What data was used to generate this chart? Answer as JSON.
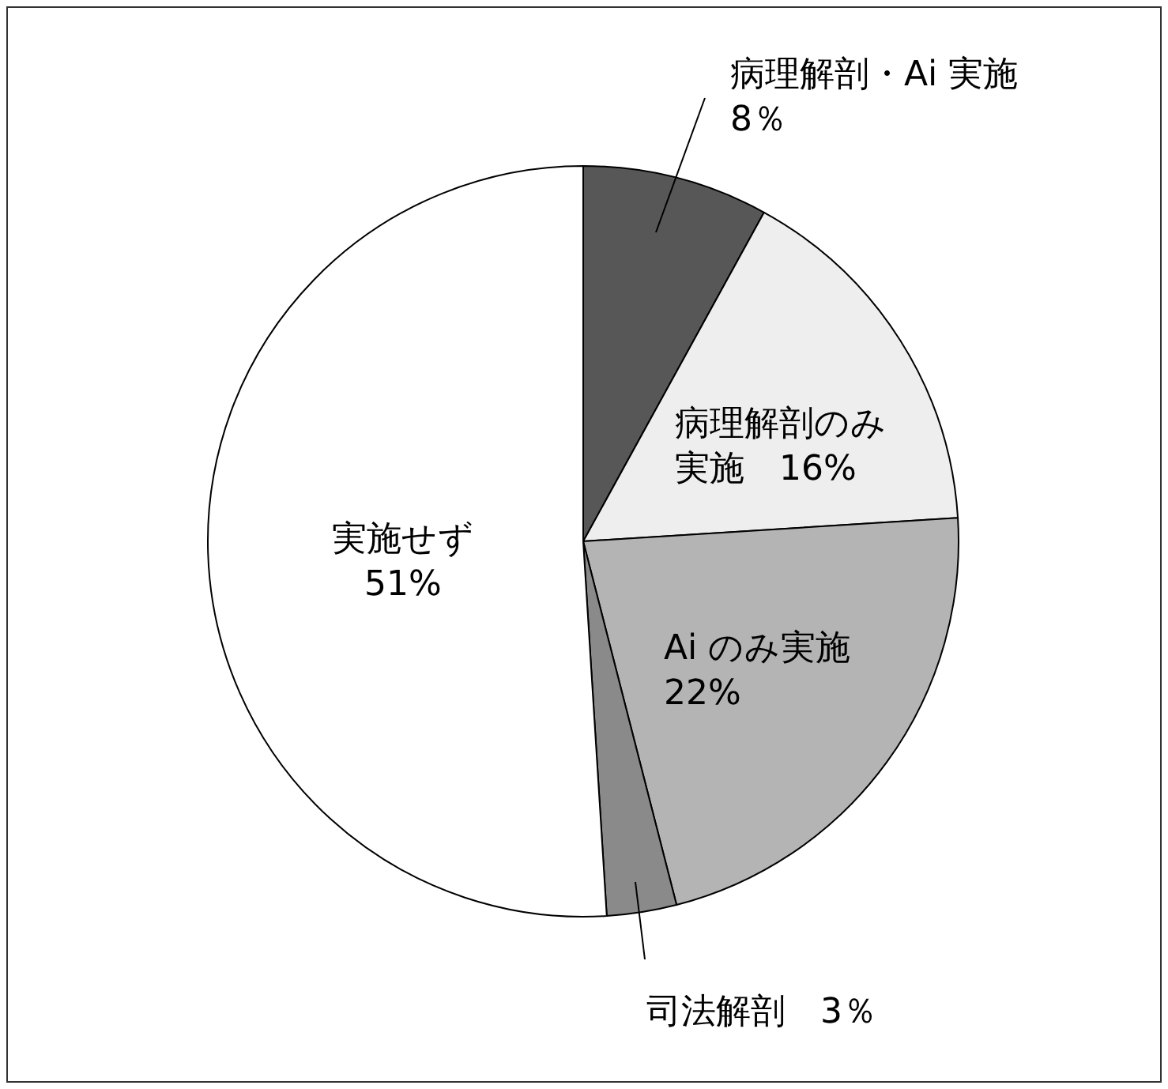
{
  "chart_data": {
    "type": "pie",
    "categories": [
      "病理解剖・Ai 実施",
      "病理解剖のみ実施",
      "Ai のみ実施",
      "司法解剖",
      "実施せず"
    ],
    "values": [
      8,
      16,
      22,
      3,
      51
    ],
    "value_labels": [
      "8％",
      "16%",
      "22%",
      "3％",
      "51%"
    ],
    "colors": [
      "#575757",
      "#eeeeee",
      "#b4b4b4",
      "#8a8a8a",
      "#ffffff"
    ]
  }
}
